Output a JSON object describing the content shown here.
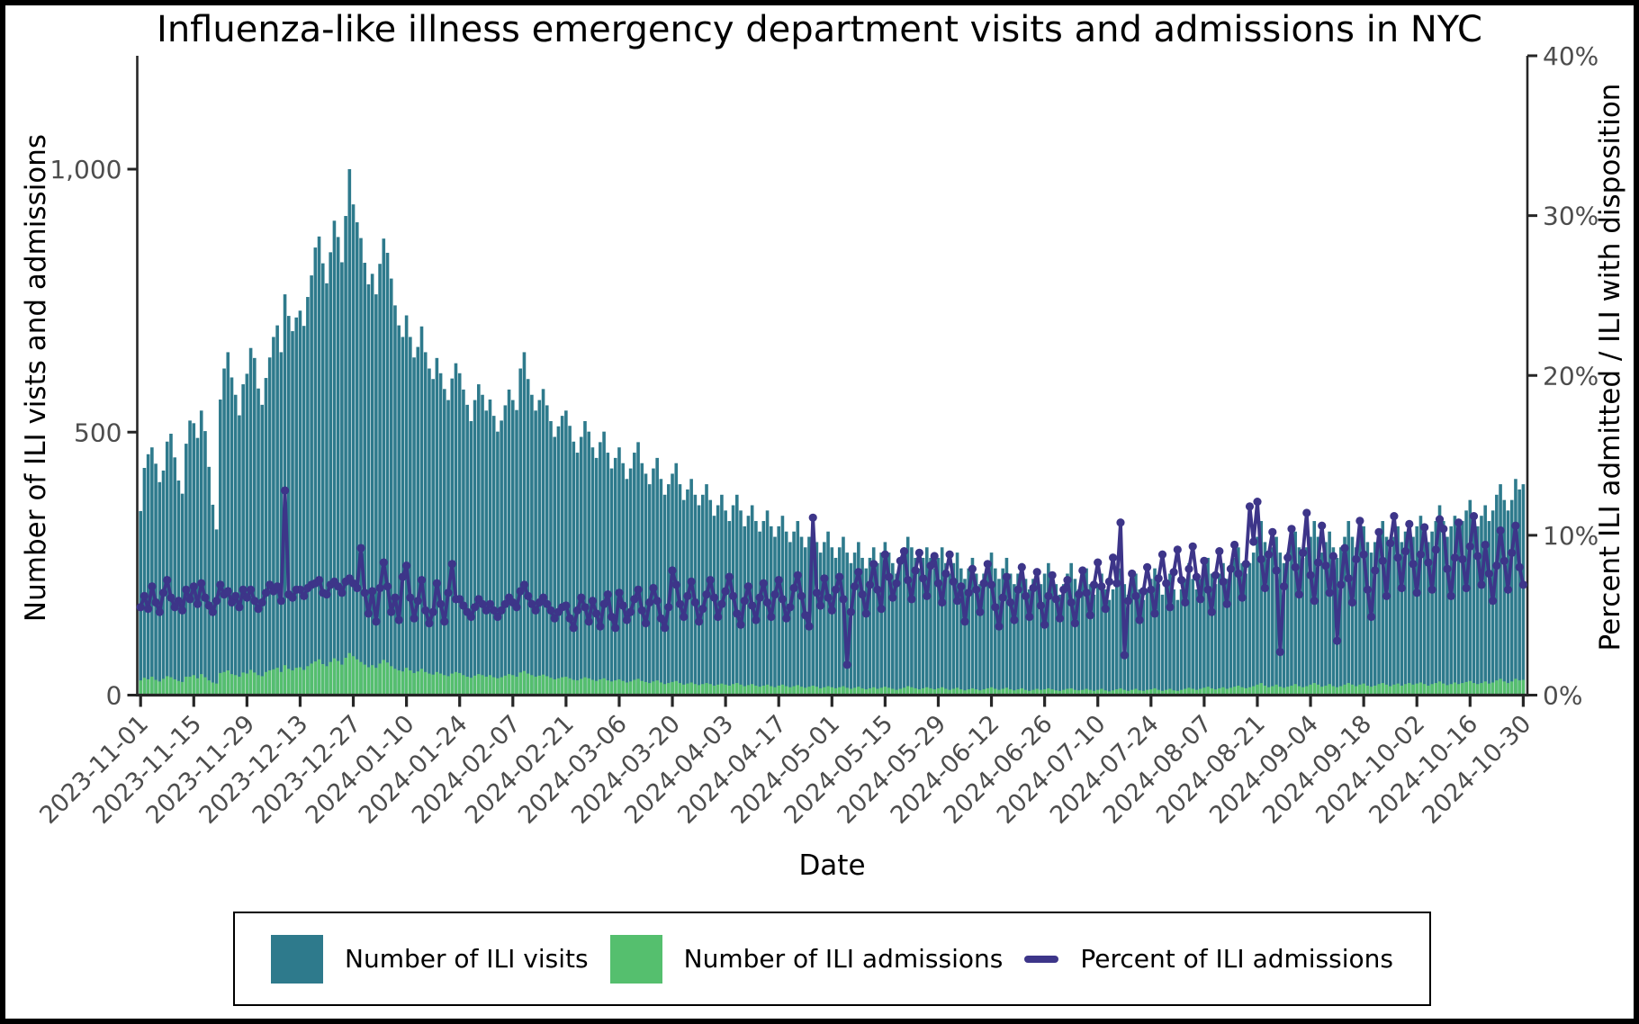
{
  "figure": {
    "title": "Influenza-like illness emergency department visits and admissions in NYC",
    "xlabel": "Date",
    "ylabel_left": "Number of ILI vists and admissions",
    "ylabel_right": "Percent ILI admitted / ILI with disposition"
  },
  "chart_data": {
    "type": "bar",
    "subtype": "combo-bar-line-dual-axis",
    "title": "Influenza-like illness emergency department visits and admissions in NYC",
    "xlabel": "Date",
    "ylabel_left": "Number of ILI vists and admissions",
    "ylabel_right": "Percent ILI admitted / ILI with disposition",
    "x_start": "2023-11-01",
    "x_end": "2024-10-30",
    "frequency": "daily",
    "n_points": 365,
    "grid": false,
    "legend_position": "bottom",
    "x_tick_labels": [
      "2023-11-01",
      "2023-11-15",
      "2023-11-29",
      "2023-12-13",
      "2023-12-27",
      "2024-01-10",
      "2024-01-24",
      "2024-02-07",
      "2024-02-21",
      "2024-03-06",
      "2024-03-20",
      "2024-04-03",
      "2024-04-17",
      "2024-05-01",
      "2024-05-15",
      "2024-05-29",
      "2024-06-12",
      "2024-06-26",
      "2024-07-10",
      "2024-07-24",
      "2024-08-07",
      "2024-08-21",
      "2024-09-04",
      "2024-09-18",
      "2024-10-02",
      "2024-10-16",
      "2024-10-30"
    ],
    "x_tick_day_index": [
      0,
      14,
      28,
      42,
      56,
      70,
      84,
      98,
      112,
      126,
      140,
      154,
      168,
      182,
      196,
      210,
      224,
      238,
      252,
      266,
      280,
      294,
      308,
      322,
      336,
      350,
      364
    ],
    "left_axis": {
      "tick_labels": [
        "0",
        "500",
        "1,000"
      ],
      "tick_values": [
        0,
        500,
        1000
      ],
      "ylim": [
        0,
        1215
      ]
    },
    "right_axis": {
      "tick_labels": [
        "0%",
        "10%",
        "20%",
        "30%",
        "40%"
      ],
      "tick_values": [
        0,
        10,
        20,
        30,
        40
      ],
      "ylim": [
        0,
        40.9
      ]
    },
    "series": [
      {
        "name": "Number of ILI visits",
        "type": "bar",
        "axis": "left",
        "color": "#2e7a8c",
        "values": [
          350,
          432,
          458,
          471,
          440,
          405,
          427,
          482,
          497,
          452,
          408,
          383,
          478,
          522,
          517,
          489,
          541,
          502,
          434,
          362,
          315,
          562,
          621,
          652,
          604,
          571,
          532,
          591,
          611,
          660,
          641,
          583,
          552,
          603,
          642,
          681,
          703,
          652,
          762,
          721,
          692,
          718,
          731,
          702,
          757,
          798,
          851,
          872,
          821,
          783,
          842,
          902,
          871,
          823,
          911,
          1000,
          933,
          899,
          869,
          822,
          781,
          801,
          762,
          820,
          868,
          841,
          792,
          741,
          703,
          681,
          722,
          681,
          642,
          662,
          701,
          652,
          621,
          601,
          641,
          612,
          582,
          561,
          602,
          631,
          612,
          581,
          552,
          521,
          561,
          591,
          571,
          541,
          562,
          531,
          501,
          522,
          551,
          581,
          561,
          542,
          621,
          652,
          601,
          571,
          541,
          561,
          582,
          551,
          521,
          491,
          511,
          531,
          541,
          512,
          482,
          461,
          491,
          521,
          501,
          471,
          451,
          481,
          501,
          461,
          431,
          451,
          471,
          441,
          411,
          431,
          461,
          481,
          441,
          421,
          401,
          431,
          451,
          411,
          381,
          401,
          421,
          441,
          401,
          371,
          391,
          411,
          381,
          361,
          381,
          401,
          371,
          341,
          361,
          381,
          351,
          331,
          361,
          381,
          351,
          321,
          341,
          361,
          331,
          311,
          331,
          351,
          321,
          301,
          321,
          341,
          311,
          291,
          311,
          331,
          301,
          281,
          301,
          321,
          291,
          271,
          291,
          311,
          281,
          261,
          281,
          301,
          271,
          251,
          271,
          291,
          261,
          241,
          261,
          281,
          251,
          271,
          291,
          271,
          251,
          231,
          251,
          271,
          301,
          281,
          261,
          241,
          261,
          281,
          261,
          241,
          261,
          281,
          251,
          231,
          251,
          271,
          241,
          221,
          241,
          261,
          231,
          211,
          231,
          251,
          271,
          241,
          221,
          241,
          261,
          231,
          211,
          231,
          251,
          221,
          201,
          221,
          241,
          211,
          231,
          251,
          231,
          211,
          191,
          211,
          231,
          251,
          221,
          201,
          221,
          241,
          211,
          191,
          211,
          231,
          201,
          181,
          201,
          221,
          241,
          211,
          191,
          211,
          231,
          201,
          181,
          201,
          221,
          241,
          211,
          191,
          211,
          231,
          201,
          181,
          201,
          221,
          251,
          221,
          201,
          221,
          241,
          261,
          231,
          211,
          231,
          251,
          221,
          241,
          261,
          281,
          251,
          231,
          251,
          271,
          301,
          331,
          291,
          261,
          281,
          301,
          271,
          251,
          271,
          291,
          311,
          281,
          261,
          281,
          301,
          331,
          301,
          271,
          291,
          311,
          281,
          261,
          281,
          301,
          331,
          301,
          281,
          301,
          321,
          291,
          271,
          291,
          311,
          331,
          301,
          281,
          301,
          321,
          291,
          311,
          331,
          301,
          321,
          341,
          311,
          291,
          311,
          331,
          361,
          331,
          301,
          321,
          341,
          311,
          331,
          351,
          371,
          341,
          321,
          341,
          361,
          331,
          351,
          381,
          401,
          371,
          351,
          371,
          411,
          391,
          401
        ]
      },
      {
        "name": "Number of ILI admissions",
        "type": "bar",
        "axis": "left",
        "color": "#55bf6e",
        "values": [
          28,
          33,
          30,
          35,
          29,
          26,
          31,
          36,
          34,
          30,
          27,
          25,
          35,
          35,
          38,
          32,
          40,
          34,
          28,
          24,
          22,
          42,
          44,
          47,
          40,
          38,
          35,
          43,
          41,
          48,
          43,
          38,
          36,
          44,
          47,
          49,
          52,
          44,
          57,
          50,
          47,
          52,
          53,
          48,
          55,
          60,
          64,
          68,
          59,
          55,
          63,
          70,
          65,
          58,
          71,
          80,
          74,
          68,
          63,
          58,
          53,
          57,
          52,
          60,
          67,
          62,
          55,
          50,
          47,
          45,
          52,
          47,
          42,
          45,
          50,
          44,
          41,
          39,
          44,
          41,
          38,
          36,
          41,
          44,
          42,
          38,
          35,
          33,
          37,
          40,
          38,
          35,
          38,
          34,
          32,
          34,
          37,
          40,
          38,
          35,
          43,
          46,
          41,
          38,
          35,
          37,
          39,
          36,
          33,
          30,
          32,
          34,
          35,
          32,
          29,
          28,
          31,
          34,
          32,
          29,
          27,
          30,
          32,
          28,
          26,
          28,
          30,
          27,
          24,
          26,
          29,
          31,
          27,
          25,
          23,
          26,
          28,
          24,
          21,
          23,
          25,
          27,
          23,
          20,
          22,
          24,
          21,
          19,
          21,
          23,
          21,
          18,
          20,
          22,
          20,
          18,
          21,
          23,
          20,
          17,
          19,
          21,
          18,
          16,
          18,
          20,
          17,
          15,
          18,
          20,
          17,
          15,
          17,
          19,
          16,
          14,
          16,
          18,
          16,
          13,
          15,
          17,
          15,
          13,
          15,
          17,
          14,
          12,
          14,
          16,
          13,
          11,
          13,
          15,
          12,
          14,
          16,
          14,
          12,
          10,
          12,
          14,
          17,
          15,
          13,
          11,
          13,
          15,
          13,
          11,
          13,
          15,
          12,
          10,
          12,
          14,
          11,
          9,
          11,
          13,
          11,
          9,
          11,
          13,
          15,
          12,
          10,
          12,
          14,
          11,
          9,
          11,
          13,
          10,
          8,
          10,
          12,
          10,
          11,
          13,
          11,
          9,
          8,
          10,
          12,
          13,
          10,
          9,
          10,
          12,
          10,
          8,
          10,
          12,
          9,
          7,
          9,
          11,
          13,
          10,
          8,
          10,
          12,
          9,
          8,
          10,
          11,
          13,
          10,
          8,
          10,
          12,
          9,
          8,
          10,
          12,
          14,
          12,
          10,
          12,
          14,
          16,
          13,
          11,
          13,
          15,
          12,
          14,
          16,
          18,
          15,
          13,
          15,
          17,
          20,
          23,
          18,
          15,
          17,
          20,
          16,
          14,
          16,
          18,
          21,
          17,
          15,
          17,
          20,
          23,
          20,
          16,
          18,
          21,
          17,
          15,
          17,
          20,
          23,
          20,
          17,
          20,
          22,
          18,
          16,
          18,
          21,
          23,
          20,
          17,
          20,
          22,
          18,
          21,
          23,
          20,
          22,
          24,
          21,
          18,
          21,
          23,
          26,
          22,
          19,
          21,
          24,
          21,
          23,
          25,
          27,
          23,
          21,
          23,
          26,
          22,
          24,
          28,
          31,
          26,
          23,
          26,
          31,
          28,
          29
        ]
      },
      {
        "name": "Percent of ILI admissions",
        "type": "line",
        "axis": "right",
        "color": "#3d3589",
        "marker": "circle",
        "values": [
          5.5,
          6.2,
          5.4,
          6.8,
          5.8,
          5.2,
          6.4,
          7.2,
          6.1,
          5.5,
          5.9,
          5.3,
          6.6,
          6.0,
          6.8,
          5.7,
          7.0,
          6.1,
          5.6,
          5.2,
          5.9,
          6.9,
          6.3,
          6.5,
          5.8,
          6.2,
          5.5,
          6.6,
          6.1,
          6.6,
          5.9,
          5.4,
          5.8,
          6.4,
          6.9,
          6.5,
          6.8,
          5.9,
          12.8,
          6.3,
          6.1,
          6.6,
          6.6,
          6.2,
          6.7,
          6.9,
          7.0,
          7.2,
          6.4,
          6.3,
          6.9,
          7.1,
          6.8,
          6.4,
          7.1,
          7.3,
          7.0,
          6.7,
          9.2,
          6.4,
          5.1,
          6.5,
          4.6,
          6.7,
          8.3,
          6.8,
          5.2,
          6.1,
          4.7,
          7.4,
          8.1,
          6.1,
          4.8,
          5.9,
          7.2,
          5.3,
          4.5,
          5.2,
          7.0,
          5.7,
          4.6,
          6.4,
          8.2,
          6.0,
          6.0,
          5.6,
          5.2,
          4.9,
          5.5,
          6.0,
          5.7,
          5.3,
          5.7,
          5.3,
          4.9,
          5.3,
          5.7,
          6.1,
          5.8,
          5.5,
          6.5,
          6.9,
          6.2,
          5.7,
          5.3,
          5.8,
          6.1,
          5.7,
          5.3,
          4.8,
          5.2,
          5.5,
          5.6,
          4.8,
          4.2,
          5.3,
          6.1,
          5.5,
          4.6,
          5.9,
          5.1,
          4.3,
          5.7,
          6.3,
          4.9,
          4.2,
          6.4,
          5.6,
          4.7,
          5.2,
          6.0,
          6.6,
          5.3,
          4.5,
          5.8,
          6.7,
          5.9,
          4.8,
          4.2,
          5.5,
          7.8,
          6.9,
          5.7,
          4.9,
          6.2,
          7.1,
          5.8,
          4.6,
          5.4,
          6.3,
          7.2,
          6.1,
          4.9,
          5.7,
          6.5,
          7.4,
          6.2,
          5.1,
          4.4,
          5.9,
          6.8,
          5.6,
          4.7,
          6.1,
          7.0,
          5.8,
          4.9,
          6.3,
          7.2,
          6.0,
          4.8,
          5.5,
          6.7,
          7.5,
          6.2,
          5.0,
          4.3,
          11.1,
          6.4,
          5.6,
          7.3,
          6.1,
          5.3,
          6.6,
          7.4,
          6.0,
          1.9,
          5.2,
          6.8,
          7.7,
          6.3,
          5.1,
          6.9,
          8.2,
          6.6,
          5.4,
          8.8,
          7.4,
          6.1,
          7.0,
          8.4,
          9.0,
          7.2,
          6.0,
          7.8,
          8.9,
          7.3,
          6.2,
          8.1,
          8.7,
          7.0,
          5.8,
          7.6,
          8.8,
          7.1,
          5.9,
          6.8,
          4.6,
          6.4,
          7.9,
          6.6,
          5.2,
          7.0,
          8.2,
          6.9,
          5.5,
          4.3,
          6.1,
          7.4,
          5.8,
          4.7,
          6.6,
          8.0,
          6.2,
          4.9,
          6.7,
          7.7,
          5.6,
          4.4,
          6.2,
          7.5,
          6.0,
          4.8,
          6.6,
          7.2,
          5.8,
          4.5,
          6.3,
          7.8,
          6.4,
          5.0,
          6.9,
          8.3,
          6.8,
          5.4,
          7.1,
          8.6,
          7.0,
          10.8,
          2.5,
          5.9,
          7.6,
          6.2,
          4.7,
          6.5,
          8.0,
          6.6,
          5.1,
          7.3,
          8.8,
          7.0,
          5.5,
          7.7,
          9.1,
          7.2,
          5.8,
          7.9,
          9.3,
          7.4,
          6.0,
          8.4,
          6.6,
          5.2,
          7.5,
          9.0,
          7.1,
          5.7,
          7.9,
          9.4,
          7.6,
          6.1,
          8.2,
          11.8,
          9.6,
          12.1,
          8.5,
          6.7,
          8.8,
          10.2,
          7.8,
          2.7,
          6.8,
          8.6,
          10.4,
          8.0,
          6.3,
          8.9,
          11.4,
          7.5,
          5.9,
          8.3,
          10.6,
          8.1,
          6.4,
          8.7,
          3.4,
          6.9,
          9.2,
          7.3,
          5.8,
          8.5,
          10.9,
          8.8,
          6.6,
          4.9,
          7.8,
          10.2,
          8.4,
          6.2,
          9.5,
          11.2,
          8.6,
          6.7,
          9.0,
          10.7,
          8.2,
          6.4,
          8.8,
          10.5,
          8.3,
          6.6,
          9.1,
          11.0,
          10.4,
          7.9,
          6.2,
          8.6,
          10.8,
          8.5,
          6.7,
          9.3,
          11.2,
          8.7,
          6.9,
          9.4,
          7.6,
          5.9,
          8.1,
          10.3,
          8.4,
          6.6,
          8.9,
          10.6,
          8.0,
          6.9
        ]
      }
    ],
    "style": {
      "tick_label_color": "#4d4d4d",
      "axis_color": "#262626",
      "background": "#ffffff"
    }
  }
}
